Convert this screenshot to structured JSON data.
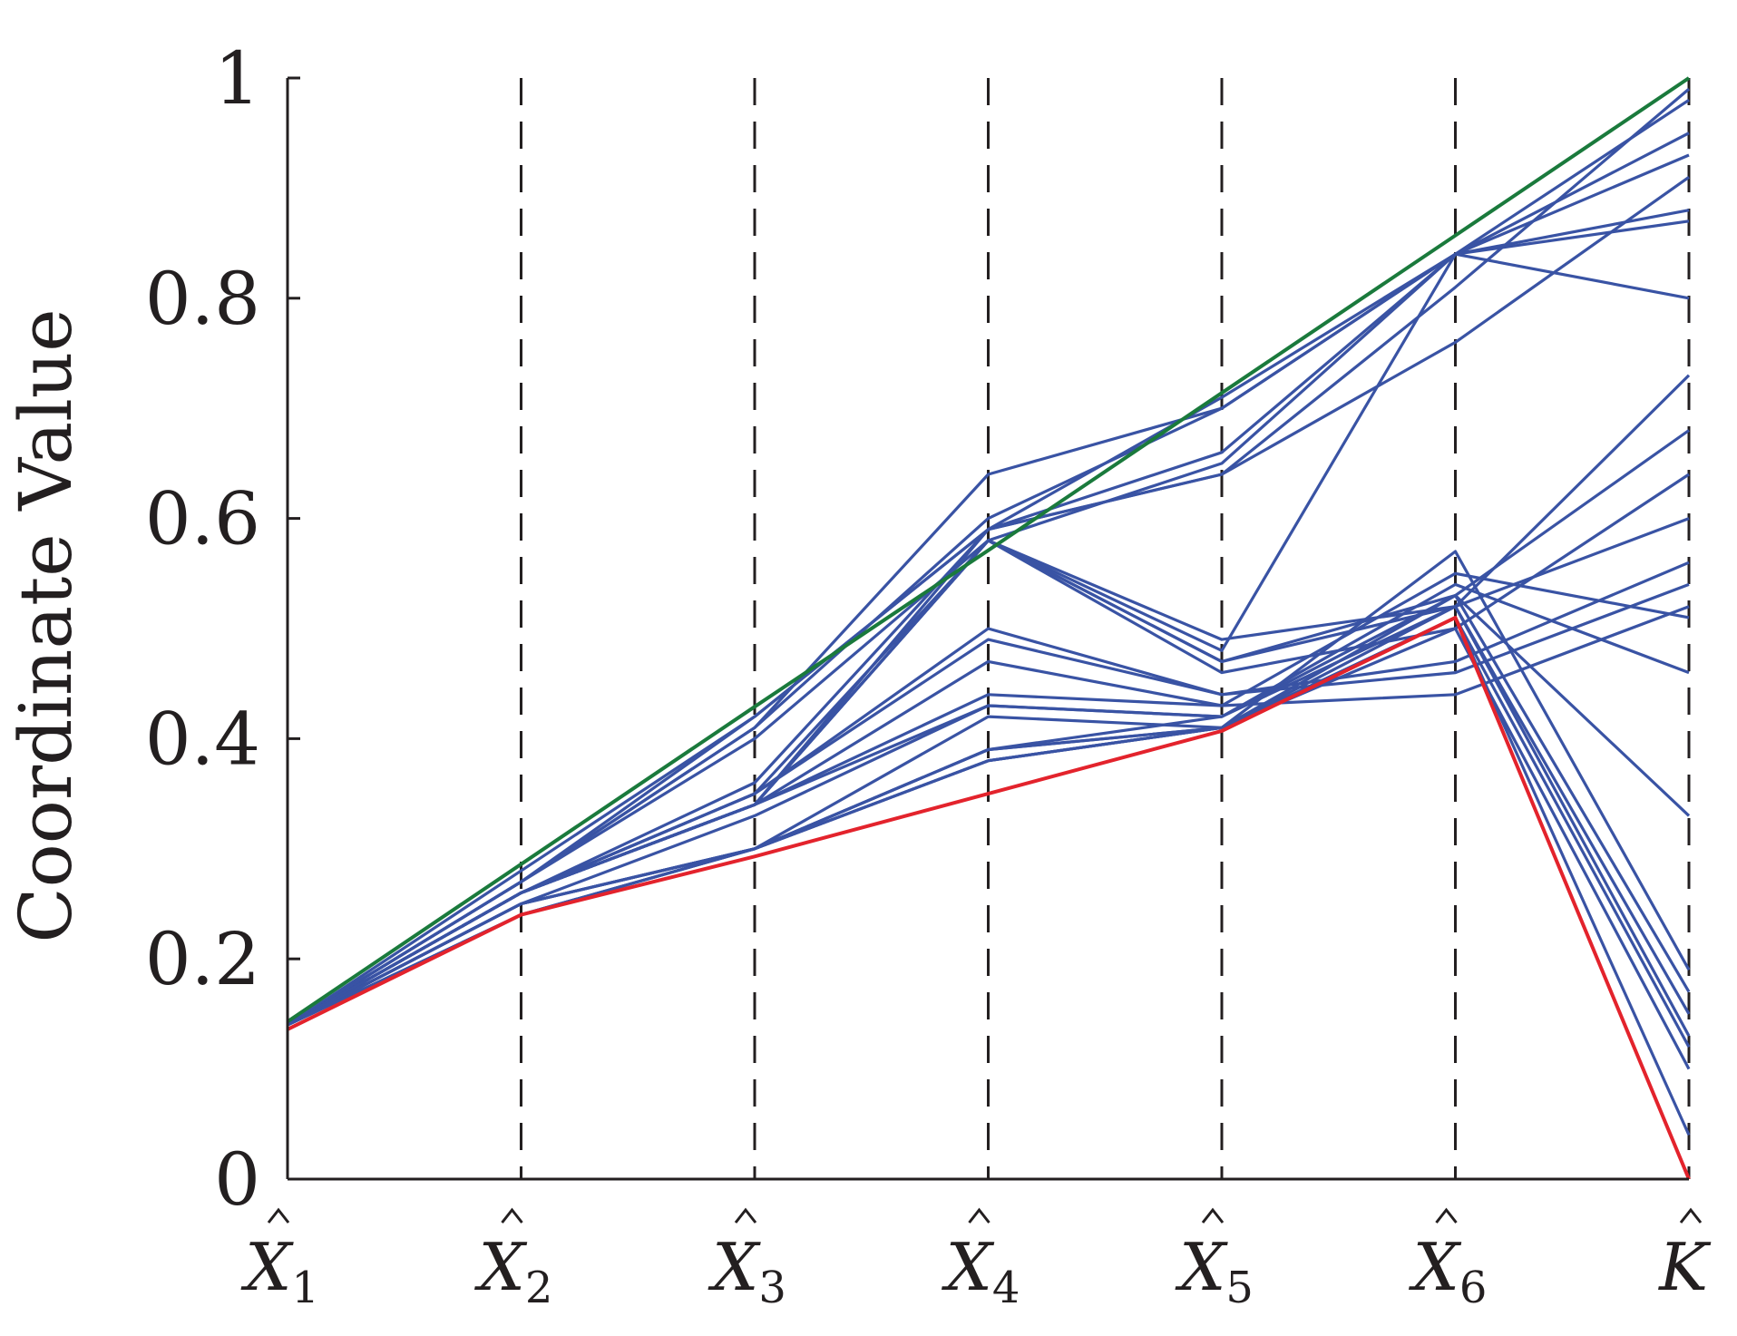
{
  "chart_data": {
    "type": "line",
    "title": "",
    "xlabel": "",
    "ylabel": "Coordinate Value",
    "ylim": [
      0,
      1
    ],
    "y_ticks": [
      "0",
      "0.2",
      "0.4",
      "0.6",
      "0.8",
      "1"
    ],
    "categories": [
      {
        "base": "X",
        "sub": "1"
      },
      {
        "base": "X",
        "sub": "2"
      },
      {
        "base": "X",
        "sub": "3"
      },
      {
        "base": "X",
        "sub": "4"
      },
      {
        "base": "X",
        "sub": "5"
      },
      {
        "base": "X",
        "sub": "6"
      },
      {
        "base": "K",
        "sub": ""
      }
    ],
    "category_accent": "hat",
    "vertical_gridlines": "dashed",
    "colors": {
      "bundle": "#3953a4",
      "upper": "#1a7a3c",
      "lower": "#e3232c",
      "axis": "#231f20"
    },
    "series": [
      {
        "color": "#3953a4",
        "values": [
          0.14,
          0.27,
          0.41,
          0.64,
          0.7,
          0.84,
          0.98
        ]
      },
      {
        "color": "#3953a4",
        "values": [
          0.14,
          0.27,
          0.41,
          0.6,
          0.7,
          0.84,
          0.95
        ]
      },
      {
        "color": "#3953a4",
        "values": [
          0.14,
          0.27,
          0.42,
          0.59,
          0.71,
          0.84,
          0.93
        ]
      },
      {
        "color": "#3953a4",
        "values": [
          0.14,
          0.28,
          0.42,
          0.59,
          0.66,
          0.84,
          0.88
        ]
      },
      {
        "color": "#3953a4",
        "values": [
          0.14,
          0.27,
          0.4,
          0.58,
          0.65,
          0.84,
          0.87
        ]
      },
      {
        "color": "#3953a4",
        "values": [
          0.14,
          0.26,
          0.36,
          0.59,
          0.64,
          0.81,
          0.99
        ]
      },
      {
        "color": "#3953a4",
        "values": [
          0.14,
          0.26,
          0.34,
          0.59,
          0.64,
          0.76,
          0.91
        ]
      },
      {
        "color": "#3953a4",
        "values": [
          0.14,
          0.26,
          0.34,
          0.58,
          0.48,
          0.84,
          0.8
        ]
      },
      {
        "color": "#3953a4",
        "values": [
          0.14,
          0.26,
          0.35,
          0.58,
          0.49,
          0.52,
          0.73
        ]
      },
      {
        "color": "#3953a4",
        "values": [
          0.14,
          0.26,
          0.34,
          0.58,
          0.47,
          0.53,
          0.68
        ]
      },
      {
        "color": "#3953a4",
        "values": [
          0.14,
          0.26,
          0.34,
          0.58,
          0.46,
          0.5,
          0.64
        ]
      },
      {
        "color": "#3953a4",
        "values": [
          0.14,
          0.26,
          0.34,
          0.58,
          0.47,
          0.52,
          0.6
        ]
      },
      {
        "color": "#3953a4",
        "values": [
          0.14,
          0.26,
          0.35,
          0.5,
          0.44,
          0.47,
          0.56
        ]
      },
      {
        "color": "#3953a4",
        "values": [
          0.14,
          0.26,
          0.35,
          0.49,
          0.44,
          0.46,
          0.54
        ]
      },
      {
        "color": "#3953a4",
        "values": [
          0.14,
          0.26,
          0.34,
          0.47,
          0.43,
          0.44,
          0.52
        ]
      },
      {
        "color": "#3953a4",
        "values": [
          0.14,
          0.26,
          0.34,
          0.44,
          0.43,
          0.55,
          0.51
        ]
      },
      {
        "color": "#3953a4",
        "values": [
          0.14,
          0.26,
          0.34,
          0.43,
          0.42,
          0.54,
          0.46
        ]
      },
      {
        "color": "#3953a4",
        "values": [
          0.14,
          0.25,
          0.33,
          0.43,
          0.42,
          0.53,
          0.33
        ]
      },
      {
        "color": "#3953a4",
        "values": [
          0.14,
          0.25,
          0.3,
          0.42,
          0.41,
          0.57,
          0.19
        ]
      },
      {
        "color": "#3953a4",
        "values": [
          0.14,
          0.25,
          0.3,
          0.39,
          0.41,
          0.53,
          0.17
        ]
      },
      {
        "color": "#3953a4",
        "values": [
          0.14,
          0.25,
          0.3,
          0.39,
          0.42,
          0.52,
          0.15
        ]
      },
      {
        "color": "#3953a4",
        "values": [
          0.14,
          0.25,
          0.3,
          0.38,
          0.41,
          0.52,
          0.13
        ]
      },
      {
        "color": "#3953a4",
        "values": [
          0.14,
          0.24,
          0.3,
          0.39,
          0.41,
          0.51,
          0.12
        ]
      },
      {
        "color": "#3953a4",
        "values": [
          0.14,
          0.24,
          0.3,
          0.38,
          0.41,
          0.5,
          0.1
        ]
      },
      {
        "color": "#3953a4",
        "values": [
          0.14,
          0.24,
          0.3,
          0.38,
          0.41,
          0.51,
          0.04
        ]
      },
      {
        "color": "#1a7a3c",
        "values": [
          0.143,
          0.286,
          0.429,
          0.571,
          0.714,
          0.857,
          1.0
        ]
      },
      {
        "color": "#e3232c",
        "values": [
          0.136,
          0.24,
          0.293,
          0.35,
          0.407,
          0.51,
          0.0
        ]
      }
    ]
  }
}
